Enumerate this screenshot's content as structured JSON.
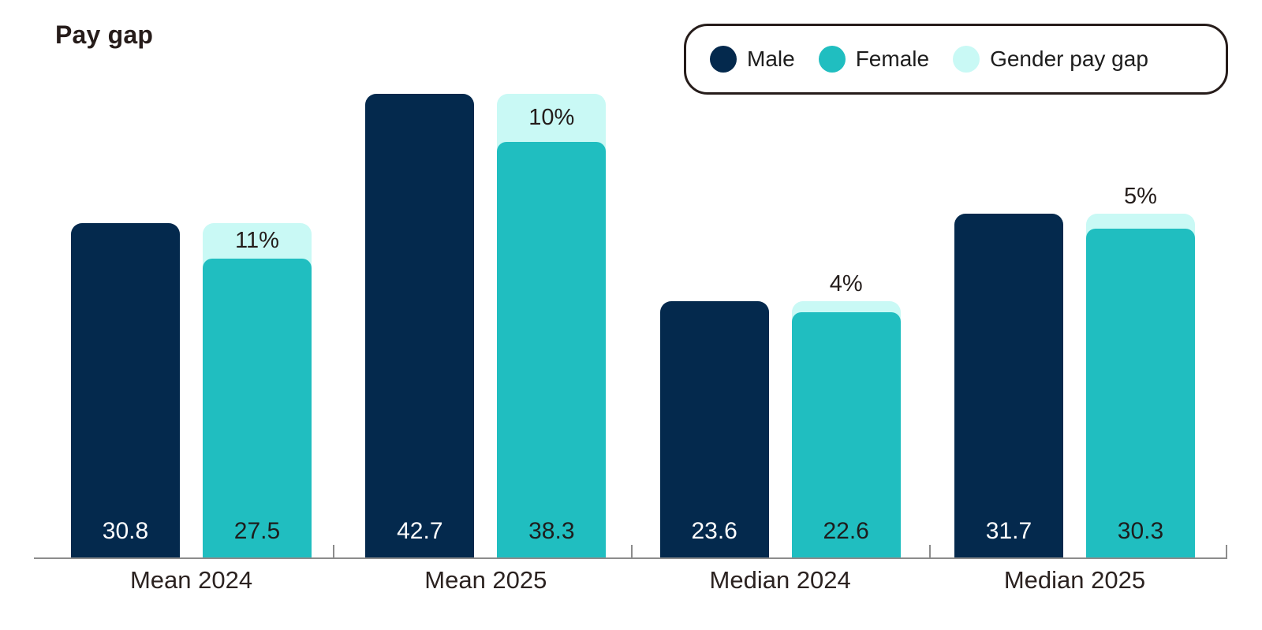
{
  "title": "Pay gap",
  "legend": {
    "items": [
      {
        "label": "Male",
        "color": "#04294d"
      },
      {
        "label": "Female",
        "color": "#20bec0"
      },
      {
        "label": "Gender pay gap",
        "color": "#c9f9f5"
      }
    ]
  },
  "chart_data": {
    "type": "bar",
    "title": "Pay gap",
    "categories": [
      "Mean 2024",
      "Mean 2025",
      "Median 2024",
      "Median 2025"
    ],
    "series": [
      {
        "name": "Male",
        "values": [
          30.8,
          42.7,
          23.6,
          31.7
        ]
      },
      {
        "name": "Female",
        "values": [
          27.5,
          38.3,
          22.6,
          30.3
        ]
      }
    ],
    "gap_labels": [
      "11%",
      "10%",
      "4%",
      "5%"
    ],
    "value_labels": {
      "male": [
        "30.8",
        "42.7",
        "23.6",
        "31.7"
      ],
      "female": [
        "27.5",
        "38.3",
        "22.6",
        "30.3"
      ]
    },
    "ylim": [
      0,
      43
    ],
    "grid": false,
    "legend_position": "top-right",
    "notes": "Female bars rise to the male value; the light segment on top of each female bar represents the gender pay gap percentage."
  },
  "colors": {
    "male": "#04294d",
    "female": "#20bec0",
    "gap": "#c9f9f5",
    "value_on_male": "#ffffff",
    "value_on_female": "#1d1d1d",
    "axis": "#8c8c8c"
  }
}
